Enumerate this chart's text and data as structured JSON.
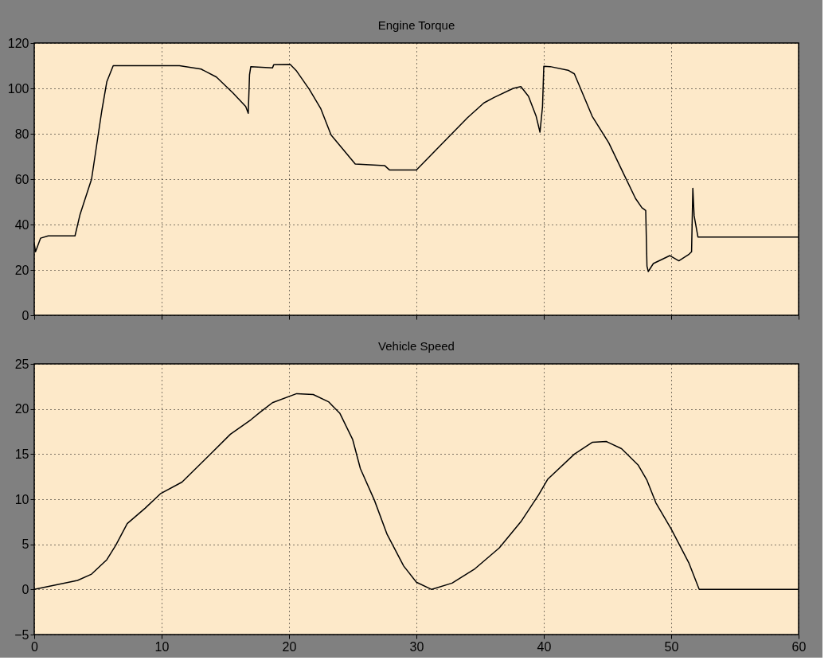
{
  "chart_data": [
    {
      "type": "line",
      "title": "Engine Torque",
      "xlim": [
        0,
        60
      ],
      "xticks": [
        0,
        10,
        20,
        30,
        40,
        50,
        60
      ],
      "ylim": [
        0,
        120
      ],
      "yticks": [
        0,
        20,
        40,
        60,
        80,
        100,
        120
      ],
      "grid": true,
      "tick_labels": "y",
      "line_style": "solid",
      "marker": "none",
      "series": [
        {
          "color": "#000000",
          "x": [
            0,
            0.1,
            0.5,
            1.1,
            3.2,
            3.6,
            4.5,
            4.9,
            5.3,
            5.7,
            6.2,
            6.8,
            9.1,
            11.4,
            13.1,
            14.3,
            15.6,
            16.6,
            16.8,
            16.9,
            17,
            18.7,
            18.8,
            20.1,
            20.6,
            21.6,
            22.5,
            23.3,
            25.2,
            27.5,
            27.9,
            30,
            34,
            35.3,
            36.1,
            37.6,
            38.2,
            38.8,
            39.4,
            39.7,
            39.9,
            40,
            40.5,
            41.9,
            42.4,
            43.8,
            45.1,
            46.3,
            47.2,
            47.7,
            48,
            48.1,
            48.2,
            48.6,
            49.9,
            50.6,
            51.4,
            51.6,
            51.7,
            51.8,
            52.1,
            60
          ],
          "values": [
            31.6,
            28,
            34,
            35,
            35,
            44.5,
            60,
            75,
            90,
            103,
            110,
            110,
            110,
            110,
            108.5,
            105,
            98,
            92,
            89,
            106,
            109.6,
            109,
            110.4,
            110.5,
            107.6,
            99.5,
            91,
            79.5,
            66.7,
            66,
            64,
            64,
            87,
            93.6,
            96,
            100,
            100.8,
            96.5,
            87.7,
            80.7,
            92,
            109.7,
            109.6,
            108,
            106.4,
            87.7,
            76,
            62,
            51.5,
            47.4,
            46.2,
            21.6,
            19.3,
            22.8,
            26.3,
            24,
            26.9,
            28,
            56,
            43.9,
            34.5,
            34.5
          ]
        }
      ]
    },
    {
      "type": "line",
      "title": "Vehicle Speed",
      "xlim": [
        0,
        60
      ],
      "xticks": [
        0,
        10,
        20,
        30,
        40,
        50,
        60
      ],
      "ylim": [
        -5,
        25
      ],
      "yticks": [
        -5,
        0,
        5,
        10,
        15,
        20,
        25
      ],
      "grid": true,
      "line_style": "solid",
      "marker": "none",
      "series": [
        {
          "color": "#000000",
          "x": [
            0,
            3.4,
            4.5,
            5.7,
            6.4,
            7.3,
            8.7,
            9.9,
            11.6,
            13.9,
            15.4,
            17,
            17.7,
            18.7,
            20.6,
            21.9,
            23.1,
            24,
            25,
            25.6,
            26.7,
            27.7,
            29,
            30,
            31.2,
            32.8,
            34.6,
            36.5,
            38.2,
            39.6,
            40.3,
            42.4,
            43.8,
            44.9,
            46.1,
            47.4,
            48.1,
            48.8,
            50,
            51.4,
            52.2,
            60
          ],
          "values": [
            0,
            1,
            1.7,
            3.3,
            4.9,
            7.3,
            9,
            10.6,
            11.9,
            15.1,
            17.2,
            18.8,
            19.6,
            20.7,
            21.7,
            21.6,
            20.8,
            19.5,
            16.6,
            13.4,
            9.9,
            6.1,
            2.6,
            0.8,
            0,
            0.7,
            2.3,
            4.6,
            7.5,
            10.5,
            12.2,
            15,
            16.3,
            16.4,
            15.6,
            13.8,
            12.1,
            9.6,
            6.7,
            2.9,
            0,
            0
          ]
        }
      ]
    }
  ]
}
